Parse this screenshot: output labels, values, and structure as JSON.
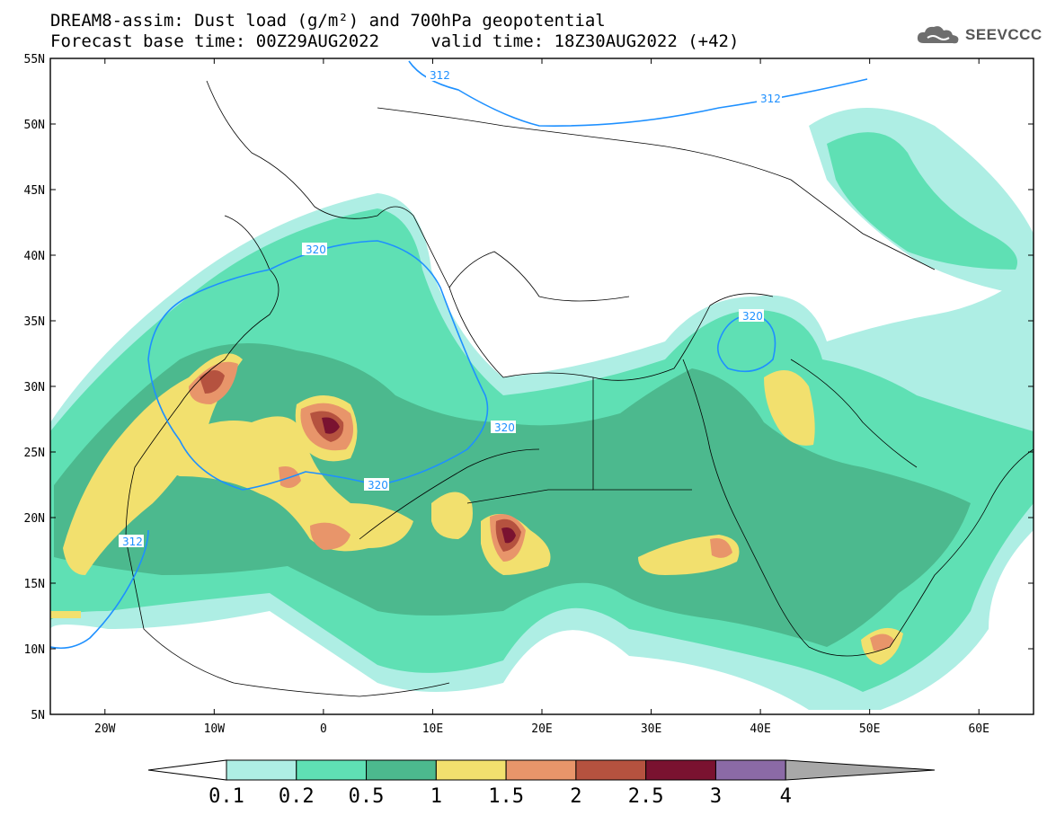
{
  "title": {
    "line1": "DREAM8-assim: Dust load (g/m²) and 700hPa geopotential",
    "line2": "Forecast base time: 00Z29AUG2022     valid time: 18Z30AUG2022 (+42)"
  },
  "logo": {
    "text": "SEEVCCC",
    "icon": "cloud-icon"
  },
  "map": {
    "lon_range": [
      -25,
      65
    ],
    "lat_range": [
      5,
      55
    ],
    "lat_ticks": [
      "5N",
      "10N",
      "15N",
      "20N",
      "25N",
      "30N",
      "35N",
      "40N",
      "45N",
      "50N",
      "55N"
    ],
    "lon_ticks": [
      "20W",
      "10W",
      "0",
      "10E",
      "20E",
      "30E",
      "40E",
      "50E",
      "60E"
    ],
    "contour_labels": [
      "312",
      "312",
      "320",
      "320",
      "320",
      "320",
      "312"
    ]
  },
  "colorbar": {
    "labels": [
      "0.1",
      "0.2",
      "0.5",
      "1",
      "1.5",
      "2",
      "2.5",
      "3",
      "4"
    ],
    "colors": [
      "#aeeee4",
      "#5fe0b4",
      "#4cb98e",
      "#f2e06e",
      "#e8956a",
      "#b5523f",
      "#7a1230",
      "#8b6aa6",
      "#a8a8a8"
    ],
    "under_color": "#ffffff"
  },
  "colors": {
    "contour": "#1e90ff",
    "border": "#000000"
  }
}
